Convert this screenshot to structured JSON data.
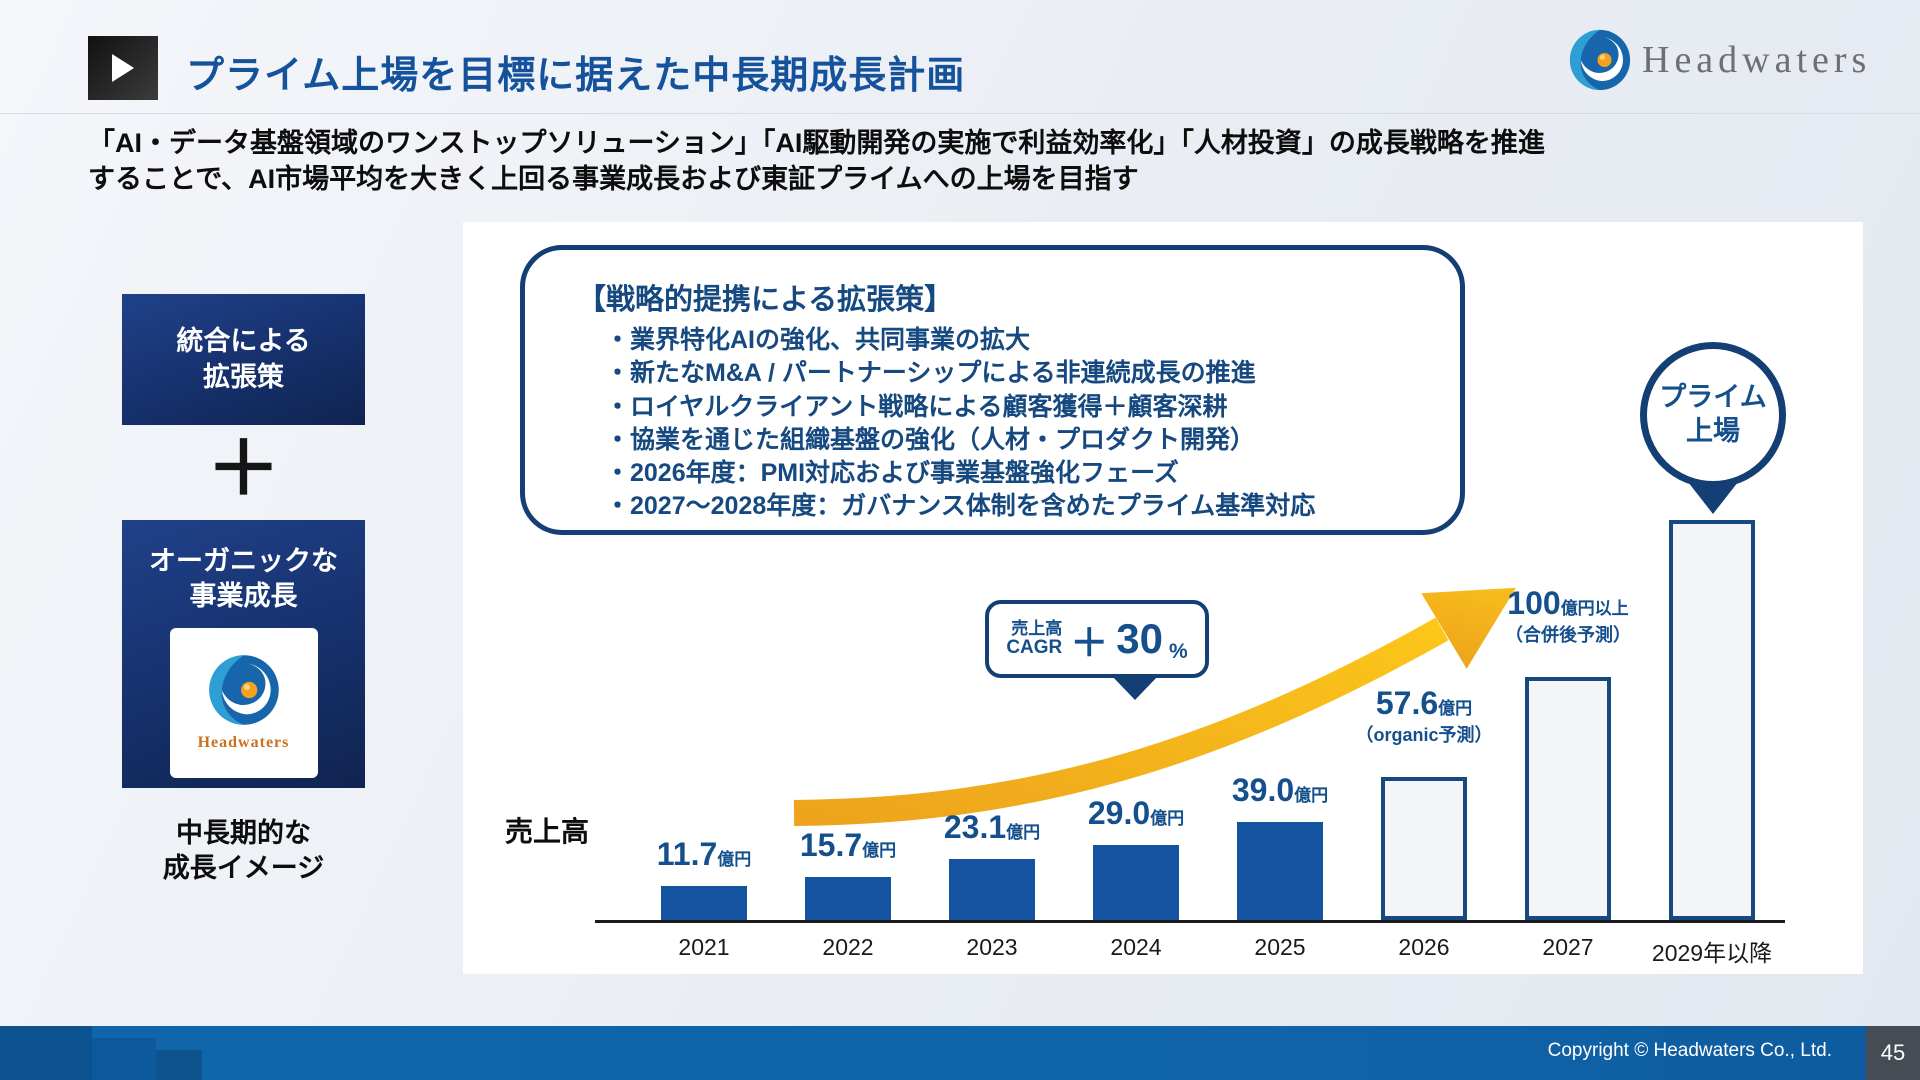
{
  "header": {
    "title": "プライム上場を目標に据えた中長期成長計画",
    "logo_text": "Headwaters"
  },
  "lead": {
    "line1": "「AI・データ基盤領域のワンストップソリューション」「AI駆動開発の実施で利益効率化」「人材投資」の成長戦略を推進",
    "line2": "することで、AI市場平均を大きく上回る事業成長および東証プライムへの上場を目指す"
  },
  "left_panel": {
    "box1": {
      "line1": "統合による",
      "line2": "拡張策"
    },
    "plus": "＋",
    "box2": {
      "line1": "オーガニックな",
      "line2": "事業成長",
      "logo_text": "Headwaters"
    },
    "caption": {
      "line1": "中長期的な",
      "line2": "成長イメージ"
    }
  },
  "strategy_box": {
    "title": "【戦略的提携による拡張策】",
    "bullets": [
      "・業界特化AIの強化、共同事業の拡大",
      "・新たなM&A / パートナーシップによる非連続成長の推進",
      "・ロイヤルクライアント戦略による顧客獲得＋顧客深耕",
      "・協業を通じた組織基盤の強化（人材・プロダクト開発）",
      "・2026年度：PMI対応および事業基盤強化フェーズ",
      "・2027～2028年度：ガバナンス体制を含めたプライム基準対応"
    ]
  },
  "cagr_badge": {
    "top": "売上高",
    "bottom": "CAGR",
    "plus": "＋",
    "value": "30",
    "unit": "%"
  },
  "prime_circle": {
    "line1": "プライム",
    "line2": "上場"
  },
  "chart_data": {
    "type": "bar",
    "ylabel": "売上高",
    "unit": "億円",
    "categories": [
      "2021",
      "2022",
      "2023",
      "2024",
      "2025",
      "2026",
      "2027",
      "2029年以降"
    ],
    "values": [
      11.7,
      15.7,
      23.1,
      29.0,
      39.0,
      57.6,
      100,
      null
    ],
    "bars": [
      {
        "year": "2021",
        "value": 11.7,
        "label_num": "11.7",
        "label_unit": "億円",
        "style": "solid"
      },
      {
        "year": "2022",
        "value": 15.7,
        "label_num": "15.7",
        "label_unit": "億円",
        "style": "solid"
      },
      {
        "year": "2023",
        "value": 23.1,
        "label_num": "23.1",
        "label_unit": "億円",
        "style": "solid"
      },
      {
        "year": "2024",
        "value": 29.0,
        "label_num": "29.0",
        "label_unit": "億円",
        "style": "solid"
      },
      {
        "year": "2025",
        "value": 39.0,
        "label_num": "39.0",
        "label_unit": "億円",
        "style": "solid"
      },
      {
        "year": "2026",
        "value": 57.6,
        "label_num": "57.6",
        "label_unit": "億円",
        "label_sub": "（organic予測）",
        "style": "outline"
      },
      {
        "year": "2027",
        "value": 100,
        "label_num": "100",
        "label_unit": "億円以上",
        "label_sub": "（合併後予測）",
        "style": "outline"
      },
      {
        "year": "2029年以降",
        "value": null,
        "style": "outline"
      }
    ],
    "annotations": [
      "売上高 CAGR ＋30%",
      "プライム上場"
    ],
    "legend": "none",
    "grid": "off"
  },
  "footer": {
    "copyright": "Copyright © Headwaters Co., Ltd.",
    "page": "45"
  }
}
